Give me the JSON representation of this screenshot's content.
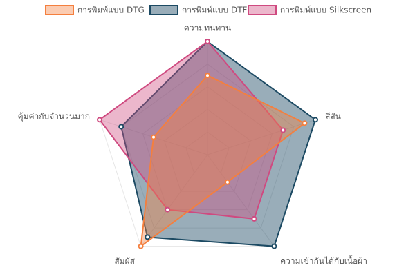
{
  "chart_data": {
    "type": "radar",
    "categories": [
      "ความทนทาน",
      "สีสัน",
      "ความเข้ากันได้กับเนื้อผ้า",
      "สัมผัส",
      "คุ้มค่ากับจำนวนมาก"
    ],
    "rlim": [
      0,
      10
    ],
    "legend": "top",
    "series": [
      {
        "name": "การพิมพ์แบบ DTG",
        "color": "#f47f3e",
        "values": [
          7,
          9,
          3,
          10,
          5
        ]
      },
      {
        "name": "การพิมพ์แบบ DTF",
        "color": "#1c4a63",
        "values": [
          10,
          10,
          10,
          9,
          8
        ]
      },
      {
        "name": "การพิมพ์แบบ Silkscreen",
        "color": "#cf4a80",
        "values": [
          10,
          7,
          7,
          6,
          10
        ]
      }
    ]
  }
}
